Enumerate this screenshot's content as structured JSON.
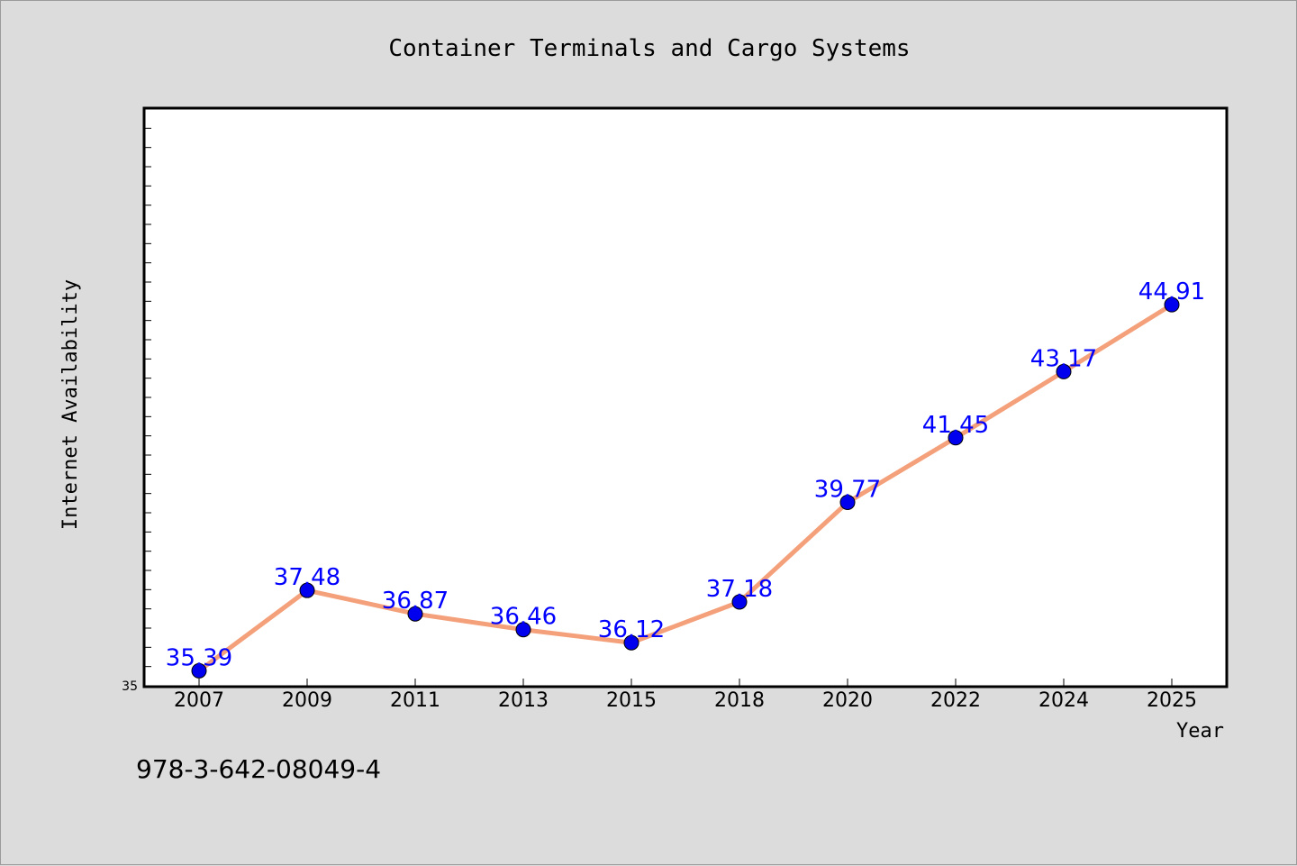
{
  "footer": {
    "isbn": "978-3-642-08049-4"
  },
  "colors": {
    "background": "#dcdcdc",
    "plot_background": "#ffffff",
    "line": "#f4a07a",
    "marker": "#0000ee",
    "data_label": "#0000ff"
  },
  "chart_data": {
    "type": "line",
    "title": "Container Terminals and Cargo Systems",
    "xlabel": "Year",
    "ylabel": "Internet Availability",
    "categories": [
      "2007",
      "2009",
      "2011",
      "2013",
      "2015",
      "2018",
      "2020",
      "2022",
      "2024",
      "2025"
    ],
    "values": [
      35.39,
      37.48,
      36.87,
      36.46,
      36.12,
      37.18,
      39.77,
      41.45,
      43.17,
      44.91
    ],
    "data_labels": [
      "35.39",
      "37.48",
      "36.87",
      "36.46",
      "36.12",
      "37.18",
      "39.77",
      "41.45",
      "43.17",
      "44.91"
    ],
    "ylim": [
      35,
      50
    ],
    "y_tick_labels": [
      "35"
    ],
    "grid": false,
    "legend": "none"
  }
}
